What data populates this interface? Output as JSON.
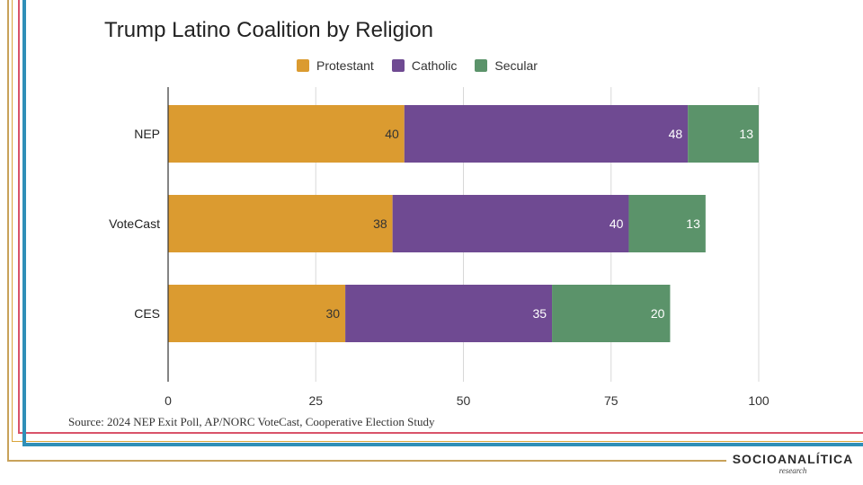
{
  "chart_data": {
    "type": "bar",
    "orientation": "horizontal",
    "stacked": true,
    "title": "Trump Latino Coalition by Religion",
    "categories": [
      "NEP",
      "VoteCast",
      "CES"
    ],
    "series": [
      {
        "name": "Protestant",
        "values": [
          40,
          38,
          30
        ],
        "color": "#db9b30"
      },
      {
        "name": "Catholic",
        "values": [
          48,
          40,
          35
        ],
        "color": "#6f4a92"
      },
      {
        "name": "Secular",
        "values": [
          13,
          13,
          20
        ],
        "color": "#5b936a"
      }
    ],
    "xlim": [
      0,
      100
    ],
    "xticks": [
      "0",
      "25",
      "50",
      "75",
      "100"
    ],
    "grid": true,
    "legend": "top-center"
  },
  "source": "Source: 2024 NEP Exit Poll, AP/NORC VoteCast, Cooperative Election Study",
  "logo": {
    "name": "SOCIOANALÍTICA",
    "sub": "research"
  }
}
